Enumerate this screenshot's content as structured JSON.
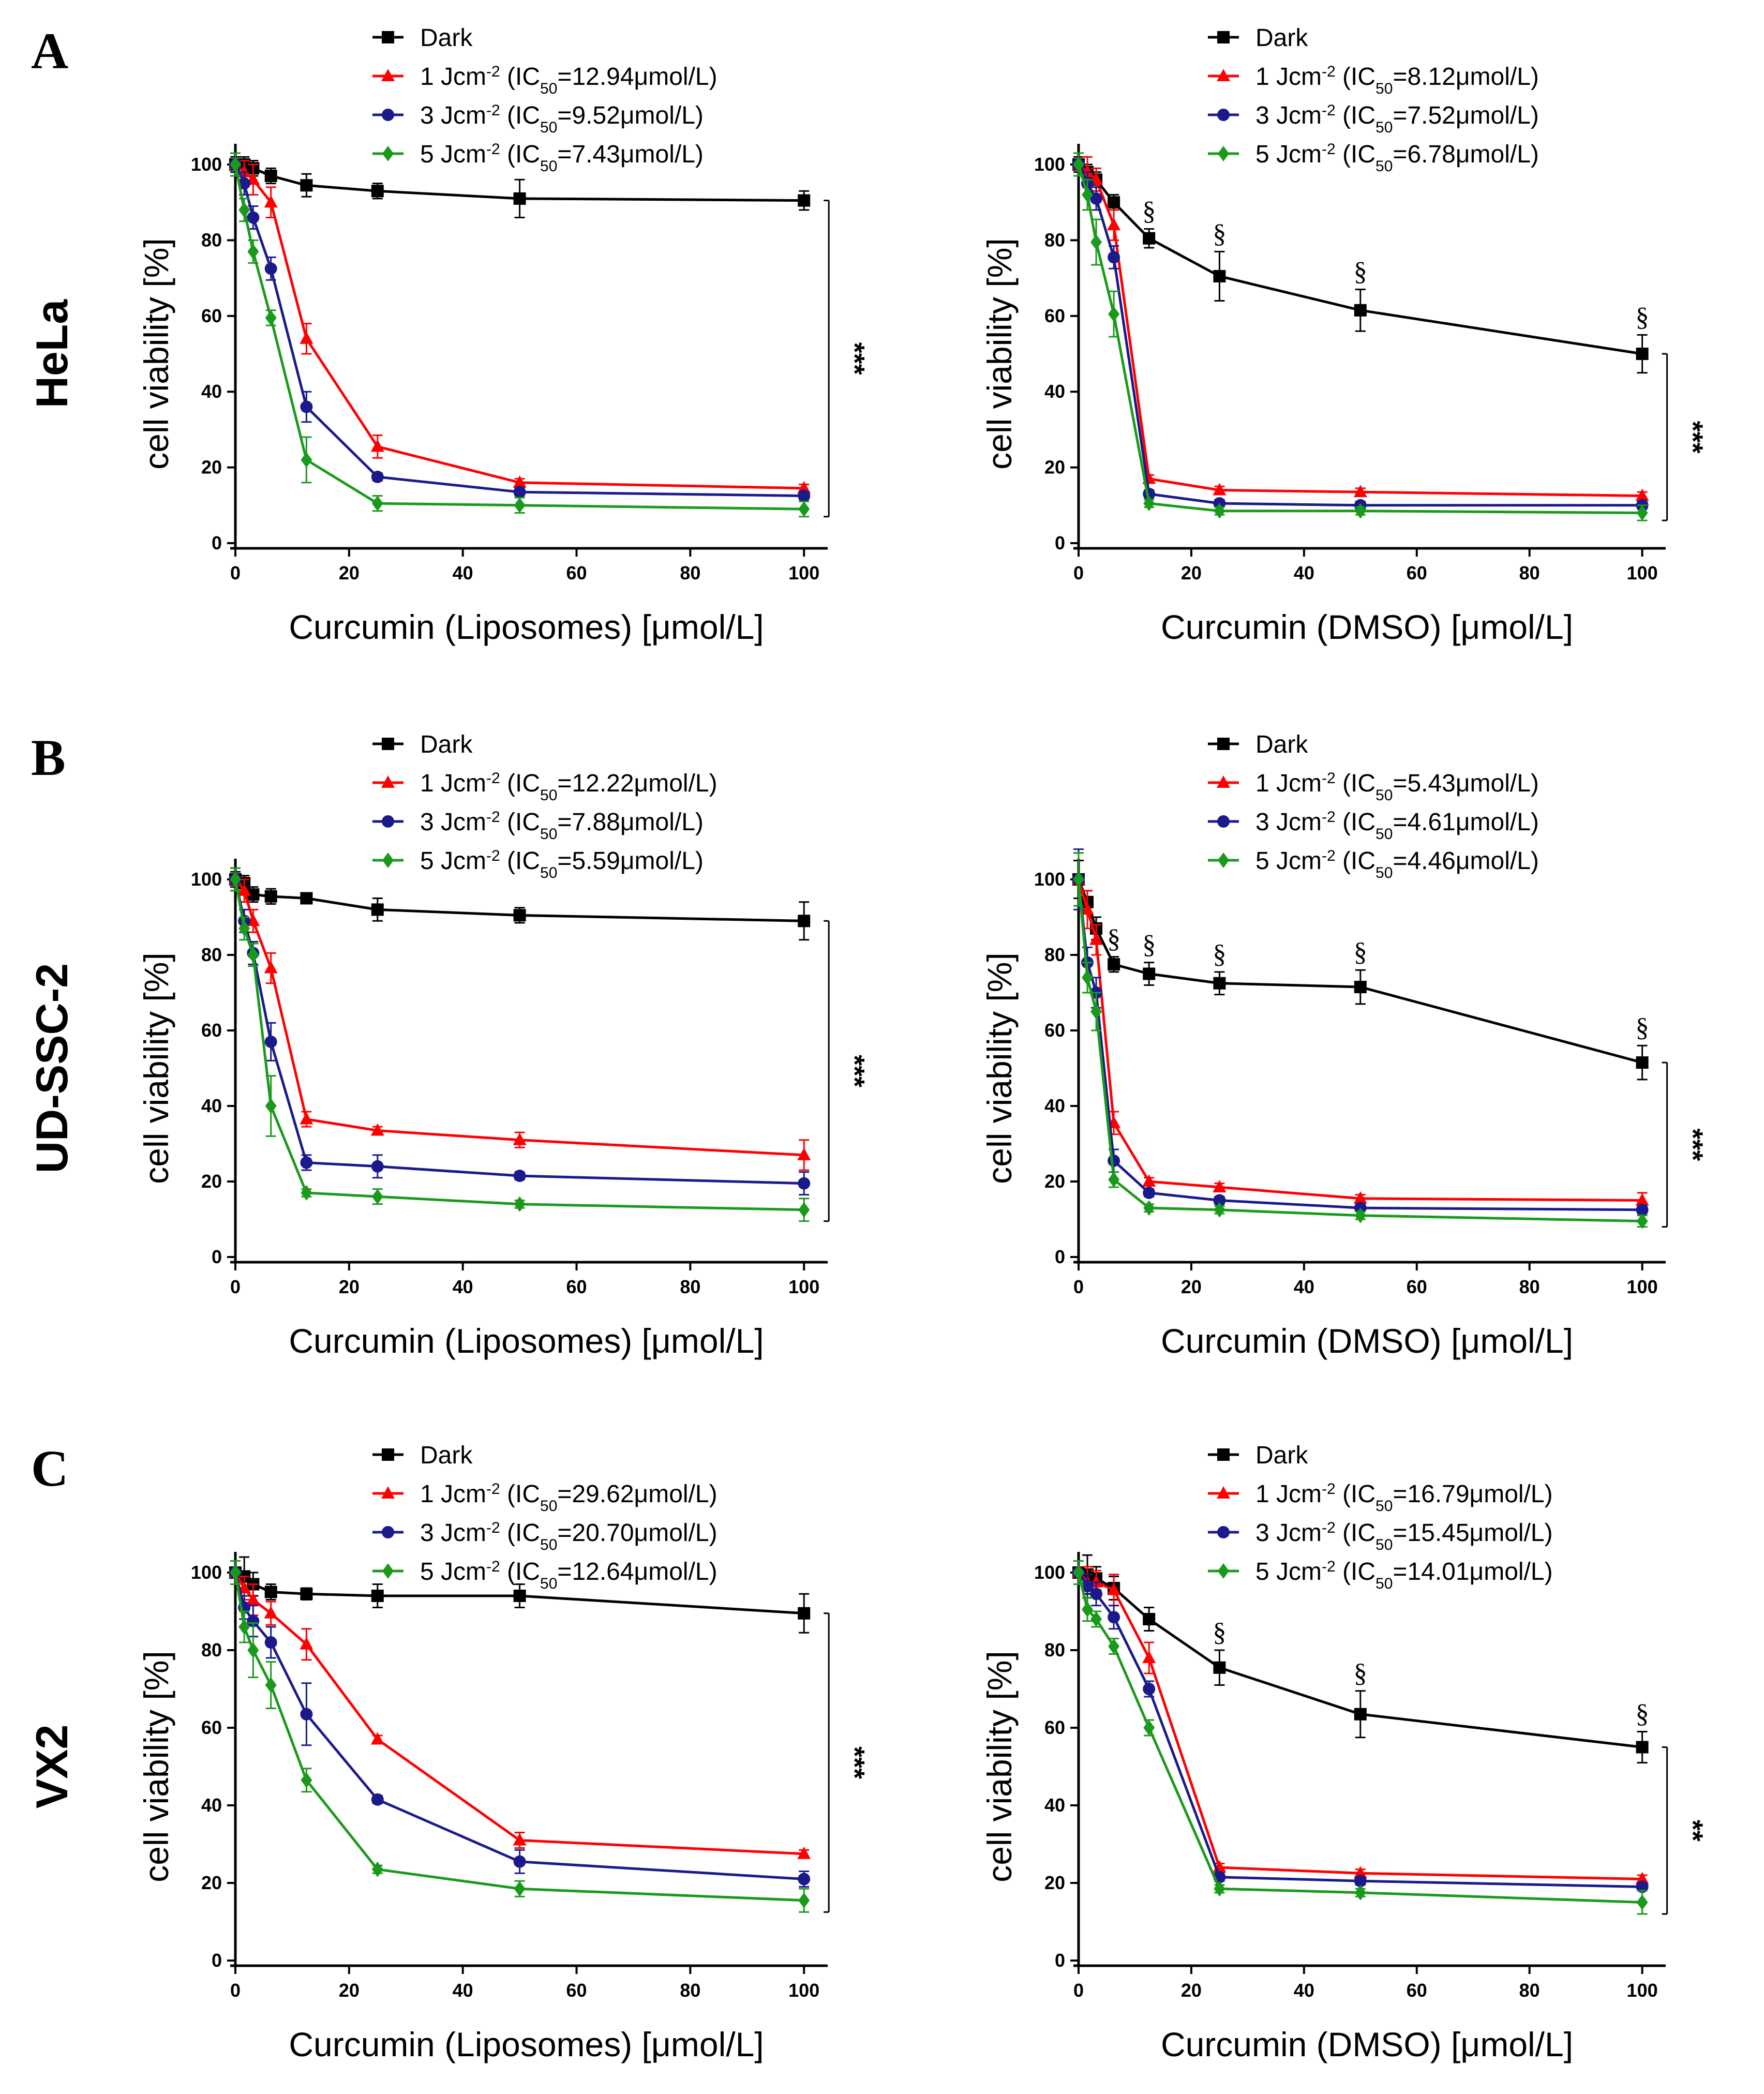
{
  "chart_data": [
    {
      "type": "line",
      "row": 0,
      "col": 0,
      "panel_letter": "A",
      "cell_line": "HeLa",
      "xlabel": "Curcumin (Liposomes) [μmol/L]",
      "ylabel": "cell viability [%]",
      "xlim": [
        0,
        100
      ],
      "ylim": [
        0,
        100
      ],
      "xticks": [
        0,
        20,
        40,
        60,
        80,
        100
      ],
      "yticks": [
        0,
        20,
        40,
        60,
        80,
        100
      ],
      "x": [
        0,
        1.5625,
        3.125,
        6.25,
        12.5,
        25,
        50,
        100
      ],
      "series": [
        {
          "name": "Dark",
          "ic50": "",
          "color": "#000000",
          "marker": "square",
          "values": [
            100,
            100,
            99,
            97,
            94.5,
            93,
            91,
            90.5
          ],
          "errors": [
            2,
            2,
            2,
            2,
            3,
            2,
            5,
            2.5
          ]
        },
        {
          "name": "1 Jcm",
          "ic50": "12.94μmol/L",
          "color": "#ff0000",
          "marker": "triangle",
          "values": [
            100,
            98,
            96,
            90,
            54,
            25.5,
            16,
            14.5
          ],
          "errors": [
            3,
            3,
            4,
            4,
            4,
            3,
            1,
            1
          ]
        },
        {
          "name": "3 Jcm",
          "ic50": "9.52μmol/L",
          "color": "#1a1a8c",
          "marker": "circle",
          "values": [
            100,
            95,
            86,
            72.5,
            36,
            17.5,
            13.5,
            12.5
          ],
          "errors": [
            3,
            3,
            3,
            3,
            4,
            1,
            1,
            1
          ]
        },
        {
          "name": "5 Jcm",
          "ic50": "7.43μmol/L",
          "color": "#1a9a1a",
          "marker": "diamond",
          "values": [
            100,
            88,
            77,
            59.5,
            22,
            10.5,
            10,
            9
          ],
          "errors": [
            3,
            3,
            3,
            2,
            6,
            2,
            2,
            2
          ]
        }
      ],
      "annotations": {
        "significance": "***",
        "section_marks": []
      }
    },
    {
      "type": "line",
      "row": 0,
      "col": 1,
      "panel_letter": "",
      "cell_line": "",
      "xlabel": "Curcumin (DMSO) [μmol/L]",
      "ylabel": "cell viability [%]",
      "xlim": [
        0,
        100
      ],
      "ylim": [
        0,
        100
      ],
      "xticks": [
        0,
        20,
        40,
        60,
        80,
        100
      ],
      "yticks": [
        0,
        20,
        40,
        60,
        80,
        100
      ],
      "x": [
        0,
        1.5625,
        3.125,
        6.25,
        12.5,
        25,
        50,
        100
      ],
      "series": [
        {
          "name": "Dark",
          "ic50": "",
          "color": "#000000",
          "marker": "square",
          "values": [
            100,
            98,
            96,
            90,
            80.5,
            70.5,
            61.5,
            50
          ],
          "errors": [
            2,
            2,
            2,
            2,
            2.5,
            6.5,
            5.5,
            5
          ]
        },
        {
          "name": "1 Jcm",
          "ic50": "8.12μmol/L",
          "color": "#ff0000",
          "marker": "triangle",
          "values": [
            100,
            98,
            96,
            84,
            17,
            14,
            13.5,
            12.5
          ],
          "errors": [
            3,
            4,
            3,
            4,
            1,
            1,
            1,
            1
          ]
        },
        {
          "name": "3 Jcm",
          "ic50": "7.52μmol/L",
          "color": "#1a1a8c",
          "marker": "circle",
          "values": [
            100,
            95,
            91,
            75.5,
            13,
            10.5,
            10,
            10
          ],
          "errors": [
            3,
            3,
            3,
            3,
            1,
            1,
            1,
            1
          ]
        },
        {
          "name": "5 Jcm",
          "ic50": "6.78μmol/L",
          "color": "#1a9a1a",
          "marker": "diamond",
          "values": [
            100,
            92,
            79.5,
            60.5,
            10.5,
            8.5,
            8.5,
            8
          ],
          "errors": [
            3,
            4,
            6,
            6,
            1,
            1,
            1,
            2
          ]
        }
      ],
      "annotations": {
        "significance": "***",
        "section_marks": [
          "§",
          "§",
          "§",
          "§"
        ],
        "section_x": [
          12.5,
          25,
          50,
          100
        ]
      }
    },
    {
      "type": "line",
      "row": 1,
      "col": 0,
      "panel_letter": "B",
      "cell_line": "UD-SSC-2",
      "xlabel": "Curcumin (Liposomes) [μmol/L]",
      "ylabel": "cell viability [%]",
      "xlim": [
        0,
        100
      ],
      "ylim": [
        0,
        100
      ],
      "xticks": [
        0,
        20,
        40,
        60,
        80,
        100
      ],
      "yticks": [
        0,
        20,
        40,
        60,
        80,
        100
      ],
      "x": [
        0,
        1.5625,
        3.125,
        6.25,
        12.5,
        25,
        50,
        100
      ],
      "series": [
        {
          "name": "Dark",
          "ic50": "",
          "color": "#000000",
          "marker": "square",
          "values": [
            100,
            99,
            96,
            95.5,
            95,
            92,
            90.5,
            89
          ],
          "errors": [
            2,
            2,
            2,
            2,
            1,
            3,
            2,
            5
          ]
        },
        {
          "name": "1 Jcm",
          "ic50": "12.22μmol/L",
          "color": "#ff0000",
          "marker": "triangle",
          "values": [
            100,
            97,
            89,
            76.5,
            36.5,
            33.5,
            31,
            27
          ],
          "errors": [
            3,
            3,
            3,
            4,
            2,
            1,
            2,
            4
          ]
        },
        {
          "name": "3 Jcm",
          "ic50": "7.88μmol/L",
          "color": "#1a1a8c",
          "marker": "circle",
          "values": [
            100,
            89,
            80.5,
            57,
            25,
            24,
            21.5,
            19.5
          ],
          "errors": [
            3,
            3,
            3,
            5,
            2,
            3,
            1,
            3
          ]
        },
        {
          "name": "5 Jcm",
          "ic50": "5.59μmol/L",
          "color": "#1a9a1a",
          "marker": "diamond",
          "values": [
            100,
            87,
            80,
            40,
            17,
            16,
            14,
            12.5
          ],
          "errors": [
            3,
            3,
            3,
            8,
            1,
            2,
            1,
            3
          ]
        }
      ],
      "annotations": {
        "significance": "***",
        "section_marks": []
      }
    },
    {
      "type": "line",
      "row": 1,
      "col": 1,
      "panel_letter": "",
      "cell_line": "",
      "xlabel": "Curcumin (DMSO) [μmol/L]",
      "ylabel": "cell viability [%]",
      "xlim": [
        0,
        100
      ],
      "ylim": [
        0,
        100
      ],
      "xticks": [
        0,
        20,
        40,
        60,
        80,
        100
      ],
      "yticks": [
        0,
        20,
        40,
        60,
        80,
        100
      ],
      "x": [
        0,
        1.5625,
        3.125,
        6.25,
        12.5,
        25,
        50,
        100
      ],
      "series": [
        {
          "name": "Dark",
          "ic50": "",
          "color": "#000000",
          "marker": "square",
          "values": [
            100,
            94,
            87,
            77.5,
            75,
            72.5,
            71.5,
            51.5
          ],
          "errors": [
            5,
            3,
            3,
            2,
            3,
            3,
            4.5,
            4.5
          ]
        },
        {
          "name": "1 Jcm",
          "ic50": "5.43μmol/L",
          "color": "#ff0000",
          "marker": "triangle",
          "values": [
            100,
            92,
            84,
            35.5,
            20,
            18.5,
            15.5,
            15
          ],
          "errors": [
            7,
            5,
            4,
            3,
            1,
            1,
            1,
            2
          ]
        },
        {
          "name": "3 Jcm",
          "ic50": "4.61μmol/L",
          "color": "#1a1a8c",
          "marker": "circle",
          "values": [
            100,
            78,
            70,
            25.5,
            17,
            15,
            13,
            12.5
          ],
          "errors": [
            8,
            4,
            4,
            3,
            1,
            1,
            1,
            1
          ]
        },
        {
          "name": "5 Jcm",
          "ic50": "4.46μmol/L",
          "color": "#1a9a1a",
          "marker": "diamond",
          "values": [
            100,
            74,
            65,
            20.5,
            13,
            12.5,
            11,
            9.5
          ],
          "errors": [
            7,
            4,
            5,
            2,
            1,
            1,
            1,
            1.5
          ]
        }
      ],
      "annotations": {
        "significance": "***",
        "section_marks": [
          "§",
          "§",
          "§",
          "§",
          "§"
        ],
        "section_x": [
          6.25,
          12.5,
          25,
          50,
          100
        ]
      }
    },
    {
      "type": "line",
      "row": 2,
      "col": 0,
      "panel_letter": "C",
      "cell_line": "VX2",
      "xlabel": "Curcumin (Liposomes) [μmol/L]",
      "ylabel": "cell viability [%]",
      "xlim": [
        0,
        100
      ],
      "ylim": [
        0,
        100
      ],
      "xticks": [
        0,
        20,
        40,
        60,
        80,
        100
      ],
      "yticks": [
        0,
        20,
        40,
        60,
        80,
        100
      ],
      "x": [
        0,
        1.5625,
        3.125,
        6.25,
        12.5,
        25,
        50,
        100
      ],
      "series": [
        {
          "name": "Dark",
          "ic50": "",
          "color": "#000000",
          "marker": "square",
          "values": [
            100,
            99,
            97,
            95,
            94.5,
            94,
            94,
            89.5
          ],
          "errors": [
            3,
            5,
            3,
            2,
            1.5,
            3,
            3,
            5
          ]
        },
        {
          "name": "1 Jcm",
          "ic50": "29.62μmol/L",
          "color": "#ff0000",
          "marker": "triangle",
          "values": [
            100,
            96,
            93,
            89.5,
            81.5,
            57,
            31,
            27.5
          ],
          "errors": [
            3,
            3,
            4,
            3,
            4,
            1,
            2,
            1
          ]
        },
        {
          "name": "3 Jcm",
          "ic50": "20.70μmol/L",
          "color": "#1a1a8c",
          "marker": "circle",
          "values": [
            100,
            91,
            87.5,
            82,
            63.5,
            41.5,
            25.5,
            21
          ],
          "errors": [
            3,
            3,
            4,
            4,
            8,
            1,
            3,
            2
          ]
        },
        {
          "name": "5 Jcm",
          "ic50": "12.64μmol/L",
          "color": "#1a9a1a",
          "marker": "diamond",
          "values": [
            100,
            86,
            80,
            71,
            46.5,
            23.5,
            18.5,
            15.5
          ],
          "errors": [
            3,
            4,
            7,
            6,
            3,
            1,
            2,
            3
          ]
        }
      ],
      "annotations": {
        "significance": "***",
        "section_marks": []
      }
    },
    {
      "type": "line",
      "row": 2,
      "col": 1,
      "panel_letter": "",
      "cell_line": "",
      "xlabel": "Curcumin (DMSO) [μmol/L]",
      "ylabel": "cell viability [%]",
      "xlim": [
        0,
        100
      ],
      "ylim": [
        0,
        100
      ],
      "xticks": [
        0,
        20,
        40,
        60,
        80,
        100
      ],
      "yticks": [
        0,
        20,
        40,
        60,
        80,
        100
      ],
      "x": [
        0,
        1.5625,
        3.125,
        6.25,
        12.5,
        25,
        50,
        100
      ],
      "series": [
        {
          "name": "Dark",
          "ic50": "",
          "color": "#000000",
          "marker": "square",
          "values": [
            100,
            99.5,
            98.5,
            96,
            88,
            75.5,
            63.5,
            55
          ],
          "errors": [
            3,
            5,
            3,
            3,
            3,
            4.5,
            6,
            4
          ]
        },
        {
          "name": "1 Jcm",
          "ic50": "16.79μmol/L",
          "color": "#ff0000",
          "marker": "triangle",
          "values": [
            100,
            97.5,
            97.5,
            95.5,
            78,
            24,
            22.5,
            21
          ],
          "errors": [
            3,
            4,
            3,
            4,
            4,
            1,
            1,
            1
          ]
        },
        {
          "name": "3 Jcm",
          "ic50": "15.45μmol/L",
          "color": "#1a1a8c",
          "marker": "circle",
          "values": [
            100,
            96.5,
            94.5,
            88.5,
            70,
            21.5,
            20.5,
            19
          ],
          "errors": [
            3,
            3,
            3,
            3,
            2,
            1,
            1,
            1
          ]
        },
        {
          "name": "5 Jcm",
          "ic50": "14.01μmol/L",
          "color": "#1a9a1a",
          "marker": "diamond",
          "values": [
            100,
            90.5,
            88,
            81,
            60,
            18.5,
            17.5,
            15
          ],
          "errors": [
            3,
            3,
            2,
            2,
            2,
            1,
            1,
            3
          ]
        }
      ],
      "annotations": {
        "significance": "**",
        "section_marks": [
          "§",
          "§",
          "§"
        ],
        "section_x": [
          25,
          50,
          100
        ]
      }
    }
  ]
}
